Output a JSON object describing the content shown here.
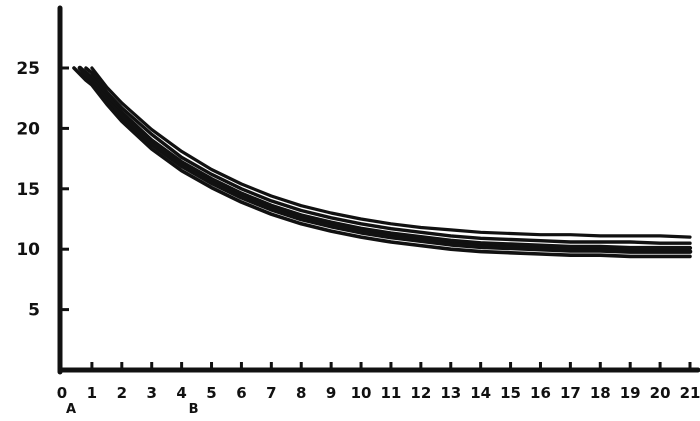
{
  "chart_data": {
    "type": "line",
    "title": "",
    "xlabel": "",
    "ylabel": "",
    "xlim": [
      0,
      21
    ],
    "ylim": [
      0,
      26
    ],
    "grid": false,
    "legend": "none",
    "x_ticks": [
      "0",
      "1",
      "2",
      "3",
      "4",
      "5",
      "6",
      "7",
      "8",
      "9",
      "10",
      "11",
      "12",
      "13",
      "14",
      "15",
      "16",
      "17",
      "18",
      "19",
      "20",
      "21"
    ],
    "y_ticks": [
      "5",
      "10",
      "15",
      "20",
      "25"
    ],
    "annotations": [
      {
        "text": "A",
        "x": 0.3
      },
      {
        "text": "B",
        "x": 4.4
      }
    ],
    "x": [
      0.4,
      0.6,
      0.8,
      1,
      1.5,
      2,
      3,
      4,
      5,
      6,
      7,
      8,
      9,
      10,
      11,
      12,
      13,
      14,
      15,
      16,
      17,
      18,
      19,
      20,
      21
    ],
    "series": [
      {
        "values": [
          null,
          null,
          null,
          25.0,
          23.4,
          22.1,
          19.9,
          18.1,
          16.6,
          15.4,
          14.4,
          13.6,
          13.0,
          12.5,
          12.1,
          11.8,
          11.6,
          11.4,
          11.3,
          11.2,
          11.2,
          11.1,
          11.1,
          11.1,
          11.0
        ]
      },
      {
        "values": [
          null,
          null,
          25.0,
          24.6,
          23.0,
          21.7,
          19.5,
          17.6,
          16.2,
          15.0,
          14.0,
          13.2,
          12.6,
          12.1,
          11.7,
          11.4,
          11.1,
          10.9,
          10.8,
          10.7,
          10.6,
          10.6,
          10.6,
          10.5,
          10.5
        ]
      },
      {
        "values": [
          null,
          25.0,
          24.6,
          24.2,
          22.6,
          21.3,
          19.0,
          17.2,
          15.8,
          14.6,
          13.6,
          12.8,
          12.2,
          11.7,
          11.3,
          11.0,
          10.7,
          10.5,
          10.4,
          10.3,
          10.2,
          10.2,
          10.1,
          10.1,
          10.1
        ]
      },
      {
        "values": [
          null,
          25.0,
          24.4,
          23.9,
          22.3,
          21.0,
          18.7,
          16.9,
          15.5,
          14.3,
          13.3,
          12.5,
          11.9,
          11.4,
          11.0,
          10.7,
          10.4,
          10.2,
          10.1,
          10.0,
          9.9,
          9.9,
          9.8,
          9.8,
          9.8
        ]
      },
      {
        "values": [
          25.0,
          24.5,
          24.0,
          23.6,
          22.0,
          20.6,
          18.3,
          16.5,
          15.1,
          13.9,
          12.9,
          12.1,
          11.5,
          11.0,
          10.6,
          10.3,
          10.0,
          9.8,
          9.7,
          9.6,
          9.5,
          9.5,
          9.4,
          9.4,
          9.4
        ]
      }
    ]
  }
}
